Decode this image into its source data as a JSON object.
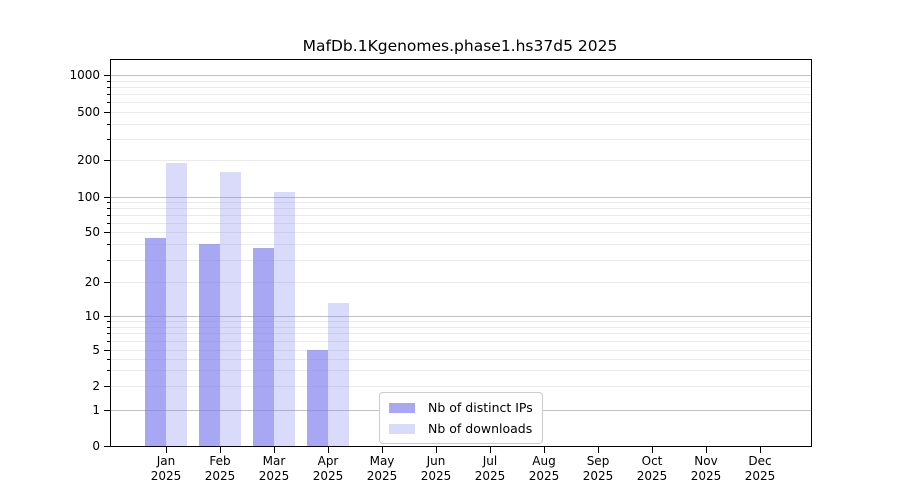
{
  "chart_data": {
    "type": "bar",
    "title": "MafDb.1Kgenomes.phase1.hs37d5 2025",
    "year": "2025",
    "categories": [
      "Jan",
      "Feb",
      "Mar",
      "Apr",
      "May",
      "Jun",
      "Jul",
      "Aug",
      "Sep",
      "Oct",
      "Nov",
      "Dec"
    ],
    "series": [
      {
        "key": "distinct-ips",
        "name": "Nb of distinct IPs",
        "color": "rgba(122,122,238,0.66)",
        "values": [
          45,
          40,
          37,
          5,
          null,
          null,
          null,
          null,
          null,
          null,
          null,
          null
        ]
      },
      {
        "key": "downloads",
        "name": "Nb of downloads",
        "color": "rgba(122,122,238,0.28)",
        "values": [
          190,
          160,
          110,
          13,
          null,
          null,
          null,
          null,
          null,
          null,
          null,
          null
        ]
      }
    ],
    "y_axis": {
      "scale": "log (linear below 1)",
      "tick_labels": [
        "0",
        "1",
        "2",
        "5",
        "10",
        "20",
        "50",
        "100",
        "200",
        "500",
        "1000"
      ],
      "tick_values": [
        0,
        1,
        2,
        5,
        10,
        20,
        50,
        100,
        200,
        500,
        1000
      ],
      "major_grid_values": [
        1,
        10,
        100,
        1000
      ],
      "range": [
        0,
        1000
      ]
    },
    "x_axis": {
      "label_format": "month + year, two lines"
    },
    "legend": {
      "position": "bottom-center",
      "entries": [
        "Nb of distinct IPs",
        "Nb of downloads"
      ]
    },
    "grid": true,
    "colors": {
      "bar_base": "#7a7aee",
      "grid_minor": "#eaeaea",
      "grid_major": "#c3c3c3",
      "axis": "#000000",
      "legend_border": "#cccccc"
    }
  }
}
